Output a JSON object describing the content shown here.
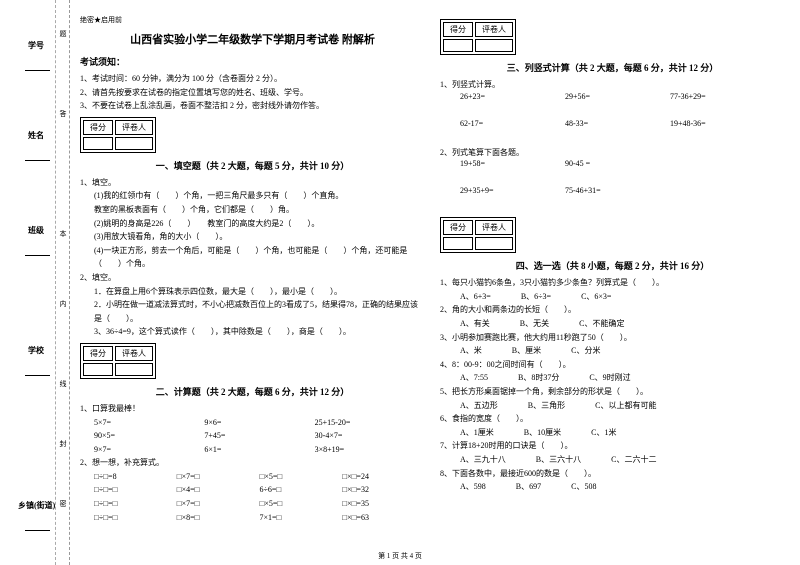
{
  "sidebar": {
    "fields": [
      "学号",
      "姓名",
      "班级",
      "学校",
      "乡镇(街道)"
    ],
    "marks": [
      "题",
      "答",
      "本",
      "内",
      "线",
      "封",
      "密"
    ]
  },
  "secret": "绝密★启用前",
  "title": "山西省实验小学二年级数学下学期月考试卷 附解析",
  "notice_head": "考试须知：",
  "notices": [
    "1、考试时间：60 分钟，满分为 100 分（含卷面分 2 分）。",
    "2、请首先按要求在试卷的指定位置填写您的姓名、班级、学号。",
    "3、不要在试卷上乱涂乱画，卷面不整洁扣 2 分，密封线外请勿作答。"
  ],
  "scorebox": {
    "c1": "得分",
    "c2": "评卷人"
  },
  "sec1": {
    "title": "一、填空题（共 2 大题，每题 5 分，共计 10 分）",
    "q1": "1、填空。",
    "q1_lines": [
      "(1)我的红领巾有（　　）个角，一把三角尺最多只有（　　）个直角。",
      "教室的黑板表面有（　　）个角，它们都是（　　）角。",
      "(2)姚明的身高是226（　　）　　教室门的高度大约是2（　　）。",
      "(3)用放大镜看角，角的大小（　　）。",
      "(4)一块正方形，剪去一个角后，可能是（　　）个角，也可能是（　　）个角，还可能是（　　）个角。"
    ],
    "q2": "2、填空。",
    "q2_lines": [
      "1．在算盘上用6个算珠表示四位数，最大是（　　），最小是（　　）。",
      "2．小明在做一道减法算式时，不小心把减数百位上的3看成了5，结果得78，正确的结果应该是（　　）。",
      "3、36÷4=9，这个算式读作（　　），其中除数是（　　），商是（　　）。"
    ]
  },
  "sec2": {
    "title": "二、计算题（共 2 大题，每题 6 分，共计 12 分）",
    "q1": "1、口算我最棒！",
    "grid1": [
      [
        "5×7=",
        "9×6=",
        "25+15-20="
      ],
      [
        "90×5=",
        "7+45=",
        "30-4×7="
      ],
      [
        "9×7=",
        "6×1=",
        "3×8+19="
      ]
    ],
    "q2": "2、想一想，补充算式。",
    "grid2": [
      [
        "□÷□=8",
        "□×7=□",
        "□×5=□",
        "□×□=24"
      ],
      [
        "□÷□=□",
        "□×4=□",
        "6÷6=□",
        "□×□=32"
      ],
      [
        "□÷□=□",
        "□×7=□",
        "□×5=□",
        "□×□=35"
      ],
      [
        "□÷□=□",
        "□×8=□",
        "7×1=□",
        "□×□=63"
      ]
    ]
  },
  "sec3": {
    "title": "三、列竖式计算（共 2 大题，每题 6 分，共计 12 分）",
    "q1": "1、列竖式计算。",
    "rows1": [
      [
        "26+23=",
        "29+56=",
        "77-36+29="
      ],
      [
        "62-17=",
        "48-33=",
        "19+48-36="
      ]
    ],
    "q2": "2、列式笔算下面各题。",
    "rows2": [
      [
        "19+58=",
        "90-45 ="
      ],
      [
        "29+35+9=",
        "75-46+31="
      ]
    ]
  },
  "sec4": {
    "title": "四、选一选（共 8 小题，每题 2 分，共计 16 分）",
    "items": [
      {
        "q": "1、每只小猫钓6条鱼，3只小猫钓多少条鱼？列算式是（　　）。",
        "opts": [
          "A、6+3=",
          "B、6÷3=",
          "C、6×3="
        ]
      },
      {
        "q": "2、角的大小和两条边的长短（　　）。",
        "opts": [
          "A、有关",
          "B、无关",
          "C、不能确定"
        ]
      },
      {
        "q": "3、小明参加赛跑比赛，他大约用11秒跑了50（　　）。",
        "opts": [
          "A、米",
          "B、厘米",
          "C、分米"
        ]
      },
      {
        "q": "4、8：00-9：00之间时间有（　　）。",
        "opts": [
          "A、7:55",
          "B、8时37分",
          "C、9时刚过"
        ]
      },
      {
        "q": "5、把长方形桌面锯掉一个角，剩余部分的形状是（　　）。",
        "opts": [
          "A、五边形",
          "B、三角形",
          "C、以上都有可能"
        ]
      },
      {
        "q": "6、食指的宽度（　　）。",
        "opts": [
          "A、1厘米",
          "B、10厘米",
          "C、1米"
        ]
      },
      {
        "q": "7、计算18+20时用的口诀是（　　）。",
        "opts": [
          "A、三九十八",
          "B、三六十八",
          "C、二六十二"
        ]
      },
      {
        "q": "8、下面各数中，最接近600的数是（　　）。",
        "opts": [
          "A、598",
          "B、697",
          "C、508"
        ]
      }
    ]
  },
  "footer": "第 1 页 共 4 页"
}
